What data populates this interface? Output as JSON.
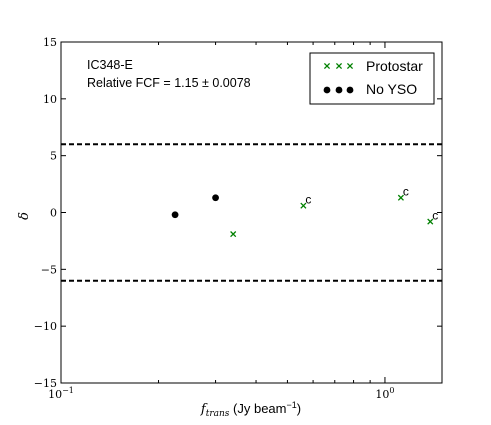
{
  "chart_data": {
    "type": "scatter",
    "title": "",
    "annotation": {
      "region": "IC348-E",
      "fcf_prefix": "Relative FCF = ",
      "fcf_value": "1.15",
      "fcf_pm": "±",
      "fcf_err": "0.0078"
    },
    "xlabel": {
      "var": "f",
      "sub": "trans",
      "units_pre": " (Jy beam",
      "units_sup": "−1",
      "units_post": ")"
    },
    "ylabel": "δ",
    "x_scale": "log",
    "xlim": [
      0.1,
      1.5
    ],
    "ylim": [
      -15,
      15
    ],
    "x_ticks": [
      {
        "value": 0.1,
        "base": "10",
        "exp": "−1"
      },
      {
        "value": 1.0,
        "base": "10",
        "exp": "0"
      }
    ],
    "y_ticks": [
      {
        "value": -15,
        "label": "−15"
      },
      {
        "value": -10,
        "label": "−10"
      },
      {
        "value": -5,
        "label": "−5"
      },
      {
        "value": 0,
        "label": "0"
      },
      {
        "value": 5,
        "label": "5"
      },
      {
        "value": 10,
        "label": "10"
      },
      {
        "value": 15,
        "label": "15"
      }
    ],
    "threshold_lines": [
      6,
      -6
    ],
    "series": [
      {
        "name": "Protostar",
        "marker": "x",
        "color": "#008000",
        "points": [
          {
            "x": 0.34,
            "y": -1.9,
            "label": ""
          },
          {
            "x": 0.56,
            "y": 0.6,
            "label": "c"
          },
          {
            "x": 1.12,
            "y": 1.3,
            "label": "c"
          },
          {
            "x": 1.38,
            "y": -0.8,
            "label": "c"
          }
        ]
      },
      {
        "name": "No YSO",
        "marker": "o",
        "color": "#000000",
        "points": [
          {
            "x": 0.225,
            "y": -0.2,
            "label": ""
          },
          {
            "x": 0.3,
            "y": 1.3,
            "label": ""
          }
        ]
      }
    ],
    "grid": false,
    "legend_position": "top-right"
  }
}
